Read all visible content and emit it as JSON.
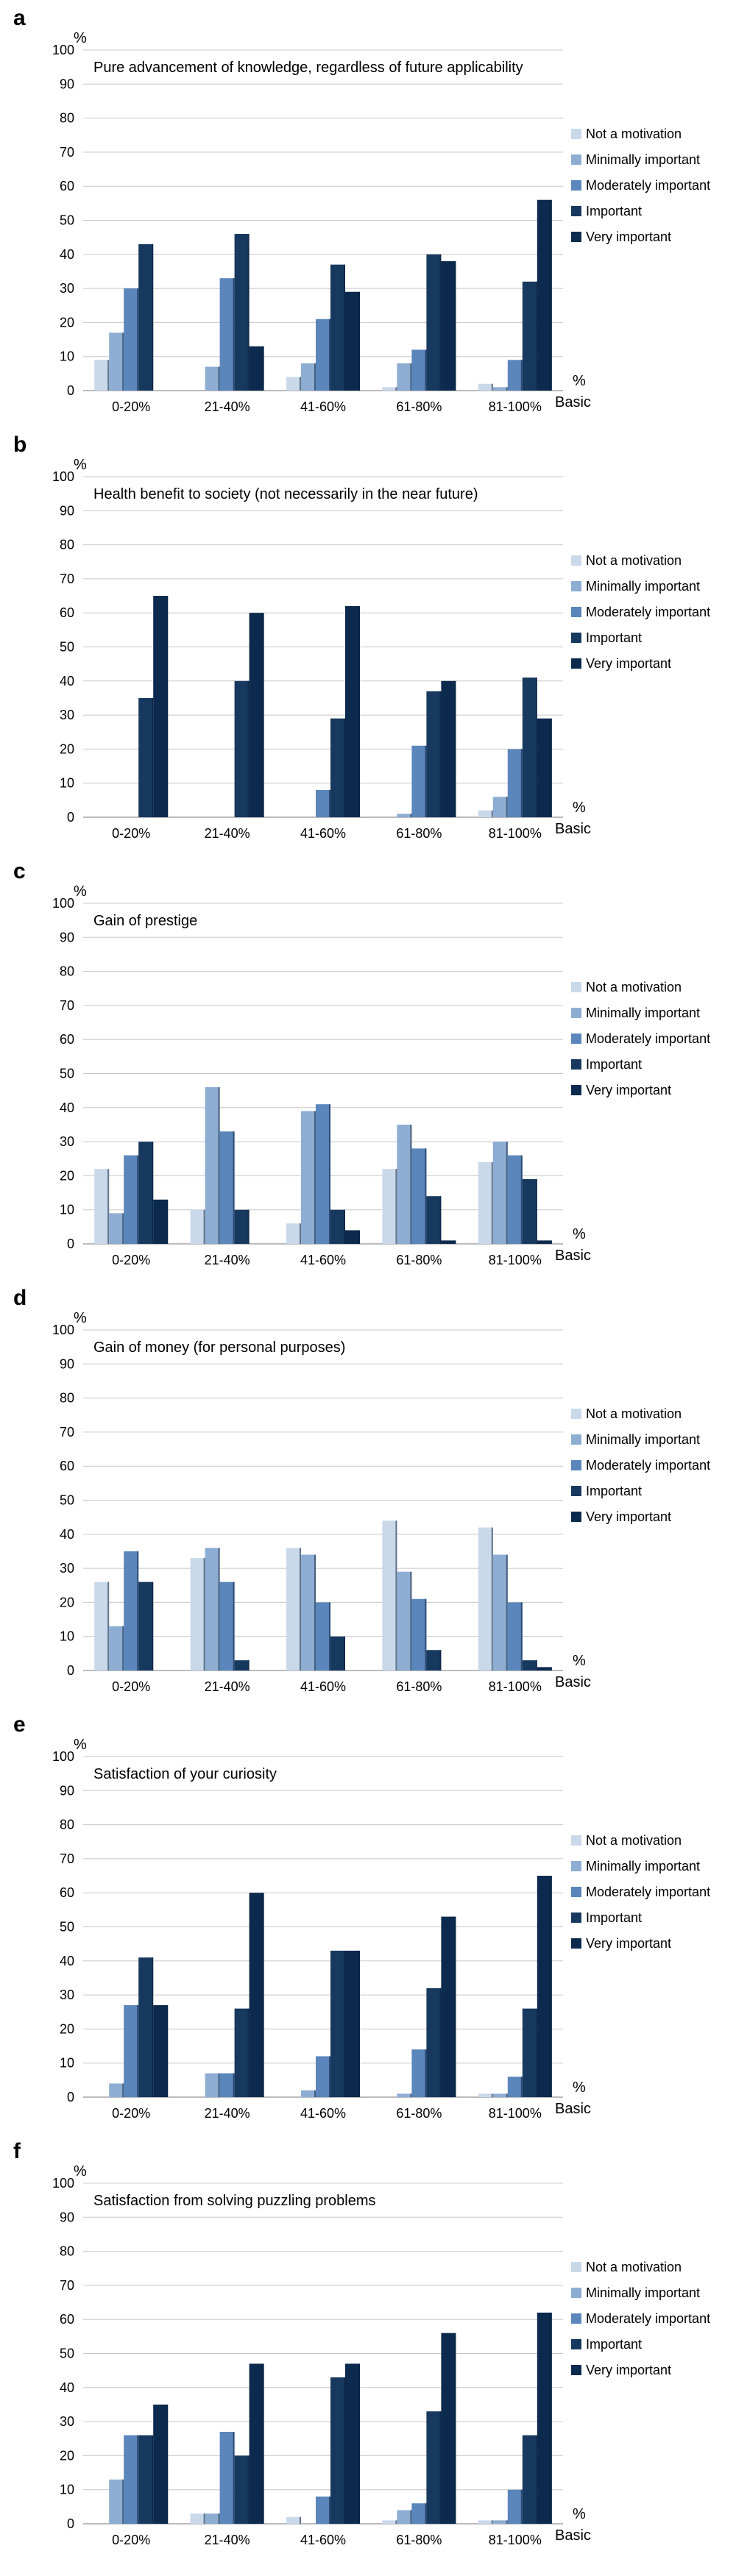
{
  "figure": {
    "legend": [
      "Not a motivation",
      "Minimally important",
      "Moderately important",
      "Important",
      "Very important"
    ],
    "series_colors": [
      "#c9d9ea",
      "#8eadd3",
      "#5a86bb",
      "#18395f",
      "#0b2a4e"
    ],
    "y_unit": "%",
    "x_unit_top": "%",
    "x_unit_bottom": "Basic"
  },
  "chart_data": [
    {
      "type": "bar",
      "panel": "a",
      "title": "Pure advancement of knowledge, regardless of future applicability",
      "categories": [
        "0-20%",
        "21-40%",
        "41-60%",
        "61-80%",
        "81-100%"
      ],
      "ylim": [
        0,
        100
      ],
      "yticks": [
        0,
        10,
        20,
        30,
        40,
        50,
        60,
        70,
        80,
        90,
        100
      ],
      "grid": true,
      "legend_position": "right",
      "series": [
        {
          "name": "Not a motivation",
          "values": [
            9,
            0,
            4,
            1,
            2
          ]
        },
        {
          "name": "Minimally important",
          "values": [
            17,
            7,
            8,
            8,
            1
          ]
        },
        {
          "name": "Moderately important",
          "values": [
            30,
            33,
            21,
            12,
            9
          ]
        },
        {
          "name": "Important",
          "values": [
            43,
            46,
            37,
            40,
            32
          ]
        },
        {
          "name": "Very important",
          "values": [
            0,
            13,
            29,
            38,
            56
          ]
        }
      ]
    },
    {
      "type": "bar",
      "panel": "b",
      "title": "Health benefit to society (not necessarily in the near future)",
      "categories": [
        "0-20%",
        "21-40%",
        "41-60%",
        "61-80%",
        "81-100%"
      ],
      "ylim": [
        0,
        100
      ],
      "yticks": [
        0,
        10,
        20,
        30,
        40,
        50,
        60,
        70,
        80,
        90,
        100
      ],
      "grid": true,
      "legend_position": "right",
      "series": [
        {
          "name": "Not a motivation",
          "values": [
            0,
            0,
            0,
            0,
            2
          ]
        },
        {
          "name": "Minimally important",
          "values": [
            0,
            0,
            0,
            1,
            6
          ]
        },
        {
          "name": "Moderately important",
          "values": [
            0,
            0,
            8,
            21,
            20
          ]
        },
        {
          "name": "Important",
          "values": [
            35,
            40,
            29,
            37,
            41
          ]
        },
        {
          "name": "Very important",
          "values": [
            65,
            60,
            62,
            40,
            29
          ]
        }
      ]
    },
    {
      "type": "bar",
      "panel": "c",
      "title": "Gain of prestige",
      "categories": [
        "0-20%",
        "21-40%",
        "41-60%",
        "61-80%",
        "81-100%"
      ],
      "ylim": [
        0,
        100
      ],
      "yticks": [
        0,
        10,
        20,
        30,
        40,
        50,
        60,
        70,
        80,
        90,
        100
      ],
      "grid": true,
      "legend_position": "right",
      "series": [
        {
          "name": "Not a motivation",
          "values": [
            22,
            10,
            6,
            22,
            24
          ]
        },
        {
          "name": "Minimally important",
          "values": [
            9,
            46,
            39,
            35,
            30
          ]
        },
        {
          "name": "Moderately important",
          "values": [
            26,
            33,
            41,
            28,
            26
          ]
        },
        {
          "name": "Important",
          "values": [
            30,
            10,
            10,
            14,
            19
          ]
        },
        {
          "name": "Very important",
          "values": [
            13,
            0,
            4,
            1,
            1
          ]
        }
      ]
    },
    {
      "type": "bar",
      "panel": "d",
      "title": "Gain of money (for personal purposes)",
      "categories": [
        "0-20%",
        "21-40%",
        "41-60%",
        "61-80%",
        "81-100%"
      ],
      "ylim": [
        0,
        100
      ],
      "yticks": [
        0,
        10,
        20,
        30,
        40,
        50,
        60,
        70,
        80,
        90,
        100
      ],
      "grid": true,
      "legend_position": "right",
      "series": [
        {
          "name": "Not a motivation",
          "values": [
            26,
            33,
            36,
            44,
            42
          ]
        },
        {
          "name": "Minimally important",
          "values": [
            13,
            36,
            34,
            29,
            34
          ]
        },
        {
          "name": "Moderately important",
          "values": [
            35,
            26,
            20,
            21,
            20
          ]
        },
        {
          "name": "Important",
          "values": [
            26,
            3,
            10,
            6,
            3
          ]
        },
        {
          "name": "Very important",
          "values": [
            0,
            0,
            0,
            0,
            1
          ]
        }
      ]
    },
    {
      "type": "bar",
      "panel": "e",
      "title": "Satisfaction of your curiosity",
      "categories": [
        "0-20%",
        "21-40%",
        "41-60%",
        "61-80%",
        "81-100%"
      ],
      "ylim": [
        0,
        100
      ],
      "yticks": [
        0,
        10,
        20,
        30,
        40,
        50,
        60,
        70,
        80,
        90,
        100
      ],
      "grid": true,
      "legend_position": "right",
      "series": [
        {
          "name": "Not a motivation",
          "values": [
            0,
            0,
            0,
            0,
            1
          ]
        },
        {
          "name": "Minimally important",
          "values": [
            4,
            7,
            2,
            1,
            1
          ]
        },
        {
          "name": "Moderately important",
          "values": [
            27,
            7,
            12,
            14,
            6
          ]
        },
        {
          "name": "Important",
          "values": [
            41,
            26,
            43,
            32,
            26
          ]
        },
        {
          "name": "Very important",
          "values": [
            27,
            60,
            43,
            53,
            65
          ]
        }
      ]
    },
    {
      "type": "bar",
      "panel": "f",
      "title": "Satisfaction from solving puzzling problems",
      "categories": [
        "0-20%",
        "21-40%",
        "41-60%",
        "61-80%",
        "81-100%"
      ],
      "ylim": [
        0,
        100
      ],
      "yticks": [
        0,
        10,
        20,
        30,
        40,
        50,
        60,
        70,
        80,
        90,
        100
      ],
      "grid": true,
      "legend_position": "right",
      "series": [
        {
          "name": "Not a motivation",
          "values": [
            0,
            3,
            2,
            1,
            1
          ]
        },
        {
          "name": "Minimally important",
          "values": [
            13,
            3,
            0,
            4,
            1
          ]
        },
        {
          "name": "Moderately important",
          "values": [
            26,
            27,
            8,
            6,
            10
          ]
        },
        {
          "name": "Important",
          "values": [
            26,
            20,
            43,
            33,
            26
          ]
        },
        {
          "name": "Very important",
          "values": [
            35,
            47,
            47,
            56,
            62
          ]
        }
      ]
    }
  ]
}
